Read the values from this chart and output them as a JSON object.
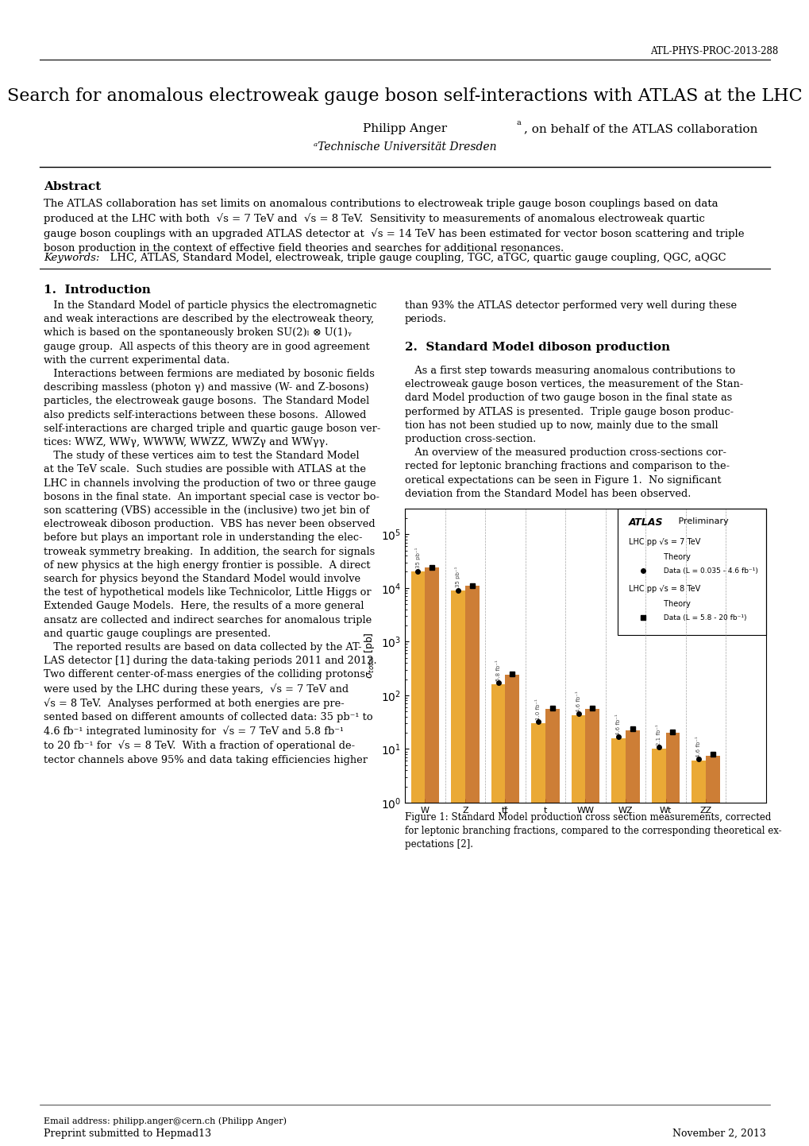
{
  "report_id": "ATL-PHYS-PROC-2013-288",
  "title": "Search for anomalous electroweak gauge boson self-interactions with ATLAS at the LHC",
  "authors": "Philipp Angerᵃ, on behalf of the ATLAS collaboration",
  "affiliation": "ᵃTechnische Universität Dresden",
  "abstract_title": "Abstract",
  "abstract_text": "The ATLAS collaboration has set limits on anomalous contributions to electroweak triple gauge boson couplings based on data\nproduced at the LHC with both  √s = 7 TeV and  √s = 8 TeV.  Sensitivity to measurements of anomalous electroweak quartic\ngauge boson couplings with an upgraded ATLAS detector at  √s = 14 TeV has been estimated for vector boson scattering and triple\nboson production in the context of effective field theories and searches for additional resonances.",
  "keywords_text": "Keywords:  LHC, ATLAS, Standard Model, electroweak, triple gauge coupling, TGC, aTGC, quartic gauge coupling, QGC, aQGC",
  "section1_title": "1.  Introduction",
  "section1_col1": "   In the Standard Model of particle physics the electromagnetic\nand weak interactions are described by the electroweak theory,\nwhich is based on the spontaneously broken SU(2)L ⊗ U(1)Y\ngauge group.  All aspects of this theory are in good agreement\nwith the current experimental data.\n   Interactions between fermions are mediated by bosonic fields\ndescribing massless (photon γ) and massive (W- and Z-bosons)\nparticles, the electroweak gauge bosons.  The Standard Model\nalso predicts self-interactions between these bosons.  Allowed\nself-interactions are charged triple and quartic gauge boson ver-\ntices: WWZ, WWγ, WWWW, WWZZ, WWZγ and WWγγ.\n   The study of these vertices aim to test the Standard Model\nat the TeV scale.  Such studies are possible with ATLAS at the\nLHC in channels involving the production of two or three gauge\nbosons in the final state.  An important special case is vector bo-\nson scattering (VBS) accessible in the (inclusive) two jet bin of\nelectroweak diboson production.  VBS has never been observed\nbefore but plays an important role in understanding the elec-\ntroweak symmetry breaking.  In addition, the search for signals\nof new physics at the high energy frontier is possible.  A direct\nsearch for physics beyond the Standard Model would involve\nthe test of hypothetical models like Technicolor, Little Higgs or\nExtended Gauge Models.  Here, the results of a more general\nansatz are collected and indirect searches for anomalous triple\nand quartic gauge couplings are presented.\n   The reported results are based on data collected by the AT-\nLAS detector [1] during the data-taking periods 2011 and 2012.\nTwo different center-of-mass energies of the colliding protons\nwere used by the LHC during these years,  √s = 7 TeV and\n√s = 8 TeV.  Analyses performed at both energies are pre-\nsented based on different amounts of collected data: 35 pb⁻¹ to\n4.6 fb⁻¹ integrated luminosity for  √s = 7 TeV and 5.8 fb⁻¹\nto 20 fb⁻¹ for  √s = 8 TeV.  With a fraction of operational de-\ntector channels above 95% and data taking efficiencies higher",
  "section1_col2": "than 93% the ATLAS detector performed very well during these\nperiods.",
  "section2_title": "2.  Standard Model diboson production",
  "section2_text": "   As a first step towards measuring anomalous contributions to\nelectroweak gauge boson vertices, the measurement of the Stan-\ndard Model production of two gauge boson in the final state as\nperformed by ATLAS is presented.  Triple gauge boson produc-\ntion has not been studied up to now, mainly due to the small\nproduction cross-section.\n   An overview of the measured production cross-sections cor-\nrected for leptonic branching fractions and comparison to the-\noretical expectations can be seen in Figure 1.  No significant\ndeviation from the Standard Model has been observed.",
  "figure_caption": "Figure 1: Standard Model production cross section measurements, corrected\nfor leptonic branching fractions, compared to the corresponding theoretical ex-\npectations [2].",
  "footer_left": "Email address: philipp.anger@cern.ch (Philipp Anger)",
  "footer_preprint": "Preprint submitted to Hepmad13",
  "footer_date": "November 2, 2013",
  "background_color": "#ffffff",
  "text_color": "#000000"
}
